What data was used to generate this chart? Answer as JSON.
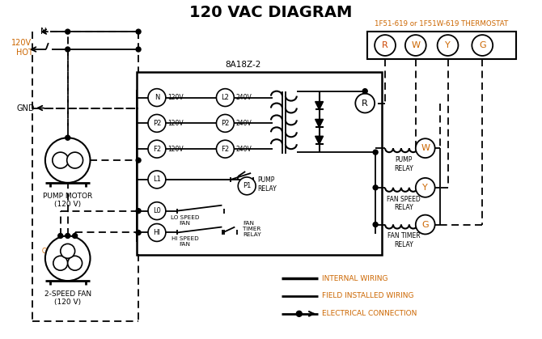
{
  "title": "120 VAC DIAGRAM",
  "bg_color": "#ffffff",
  "line_color": "#000000",
  "orange_color": "#cc6600",
  "thermostat_label": "1F51-619 or 1F51W-619 THERMOSTAT",
  "controller_label": "8A18Z-2",
  "thermostat_terminals": [
    "R",
    "W",
    "Y",
    "G"
  ],
  "terminal_colors": {
    "R": "#cc4400",
    "W": "#cc6600",
    "Y": "#cc6600",
    "G": "#cc6600"
  },
  "pump_motor_label": "PUMP MOTOR",
  "pump_motor_label2": "(120 V)",
  "fan_label": "2-SPEED FAN",
  "fan_label2": "(120 V)",
  "gnd_label": "GND",
  "hot_label": "HOT",
  "neutral_label": "N",
  "v120_label": "120V",
  "leg1": "INTERNAL WIRING",
  "leg2": "FIELD INSTALLED WIRING",
  "leg3": "ELECTRICAL CONNECTION"
}
